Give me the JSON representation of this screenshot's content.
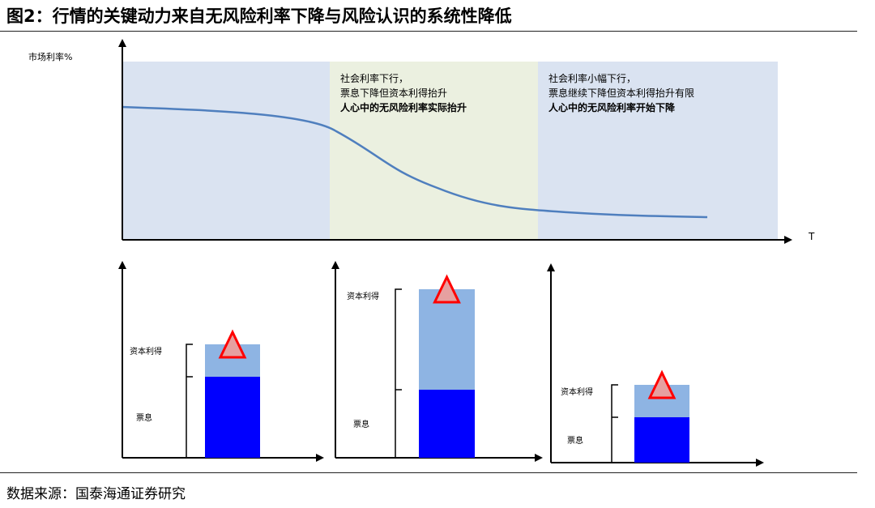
{
  "figure": {
    "title": "图2：行情的关键动力来自无风险利率下降与风险认识的系统性降低",
    "source": "数据来源：国泰海通证券研究"
  },
  "top_chart": {
    "y_axis_label": "市场利率%",
    "x_axis_label": "T",
    "phases": [
      {
        "color": "#dae3f1",
        "lines": []
      },
      {
        "color": "#ebf0e0",
        "lines": [
          "社会利率下行，",
          "票息下降但资本利得抬升"
        ],
        "bold_line": "人心中的无风险利率实际抬升"
      },
      {
        "color": "#dae3f1",
        "lines": [
          "社会利率小幅下行，",
          "票息继续下降但资本利得抬升有限"
        ],
        "bold_line": "人心中的无风险利率开始下降"
      }
    ],
    "curve_color": "#4f7fbe"
  },
  "bottom_charts": [
    {
      "coupon": 0.25,
      "gain": 0.1,
      "label_gain": "资本利得",
      "label_coupon": "票息"
    },
    {
      "coupon": 0.21,
      "gain": 0.31,
      "label_gain": "资本利得",
      "label_coupon": "票息"
    },
    {
      "coupon": 0.14,
      "gain": 0.1,
      "label_gain": "资本利得",
      "label_coupon": "票息"
    }
  ],
  "colors": {
    "coupon": "#0000ff",
    "gain": "#8eb4e3",
    "triangle_fill": "#e6a0a0",
    "triangle_stroke": "#ff0000"
  }
}
